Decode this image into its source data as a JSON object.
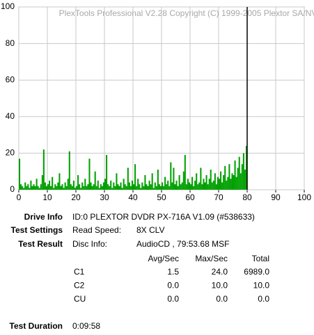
{
  "chart_data": {
    "type": "bar",
    "watermark": "PlexTools Professional V2.28 Copyright (C) 1999-2005 Plextor SA/NV",
    "x": [
      0,
      0.5,
      1,
      1.5,
      2,
      2.5,
      3,
      3.5,
      4,
      4.5,
      5,
      5.5,
      6,
      6.5,
      7,
      7.5,
      8,
      8.5,
      9,
      9.5,
      10,
      10.5,
      11,
      11.5,
      12,
      12.5,
      13,
      13.5,
      14,
      14.5,
      15,
      15.5,
      16,
      16.5,
      17,
      17.5,
      18,
      18.5,
      19,
      19.5,
      20,
      20.5,
      21,
      21.5,
      22,
      22.5,
      23,
      23.5,
      24,
      24.5,
      25,
      25.5,
      26,
      26.5,
      27,
      27.5,
      28,
      28.5,
      29,
      29.5,
      30,
      30.5,
      31,
      31.5,
      32,
      32.5,
      33,
      33.5,
      34,
      34.5,
      35,
      35.5,
      36,
      36.5,
      37,
      37.5,
      38,
      38.5,
      39,
      39.5,
      40,
      40.5,
      41,
      41.5,
      42,
      42.5,
      43,
      43.5,
      44,
      44.5,
      45,
      45.5,
      46,
      46.5,
      47,
      47.5,
      48,
      48.5,
      49,
      49.5,
      50,
      50.5,
      51,
      51.5,
      52,
      52.5,
      53,
      53.5,
      54,
      54.5,
      55,
      55.5,
      56,
      56.5,
      57,
      57.5,
      58,
      58.5,
      59,
      59.5,
      60,
      60.5,
      61,
      61.5,
      62,
      62.5,
      63,
      63.5,
      64,
      64.5,
      65,
      65.5,
      66,
      66.5,
      67,
      67.5,
      68,
      68.5,
      69,
      69.5,
      70,
      70.5,
      71,
      71.5,
      72,
      72.5,
      73,
      73.5,
      74,
      74.5,
      75,
      75.5,
      76,
      76.5,
      77,
      77.5,
      78,
      78.5,
      79,
      79.5
    ],
    "values": [
      17,
      3,
      2,
      1,
      4,
      2,
      3,
      1,
      5,
      2,
      3,
      2,
      6,
      2,
      1,
      3,
      8,
      22,
      4,
      2,
      3,
      5,
      2,
      7,
      1,
      3,
      2,
      4,
      9,
      2,
      3,
      1,
      4,
      2,
      6,
      21,
      3,
      2,
      5,
      1,
      2,
      8,
      3,
      1,
      4,
      2,
      6,
      2,
      3,
      17,
      4,
      2,
      3,
      10,
      2,
      5,
      1,
      3,
      2,
      4,
      6,
      19,
      3,
      2,
      5,
      1,
      4,
      2,
      9,
      3,
      2,
      4,
      1,
      6,
      3,
      2,
      12,
      4,
      2,
      5,
      3,
      14,
      2,
      6,
      3,
      1,
      4,
      2,
      8,
      3,
      2,
      5,
      3,
      9,
      1,
      4,
      2,
      11,
      3,
      2,
      4,
      2,
      7,
      3,
      5,
      2,
      15,
      4,
      12,
      3,
      5,
      2,
      8,
      3,
      4,
      10,
      19,
      3,
      6,
      4,
      3,
      7,
      2,
      5,
      9,
      3,
      4,
      12,
      3,
      6,
      4,
      8,
      3,
      6,
      11,
      4,
      5,
      9,
      3,
      7,
      6,
      10,
      4,
      8,
      13,
      5,
      7,
      14,
      6,
      9,
      8,
      16,
      7,
      12,
      18,
      9,
      14,
      20,
      11,
      24
    ],
    "color": "#00a000",
    "end_x": 80,
    "xlim": [
      0,
      100
    ],
    "xticks": [
      0,
      10,
      20,
      30,
      40,
      50,
      60,
      70,
      80,
      90,
      100
    ],
    "ylim": [
      0,
      100
    ],
    "yticks": [
      0,
      20,
      40,
      60,
      80,
      100
    ],
    "grid": true
  },
  "info": {
    "drive_label": "Drive Info",
    "drive_value": "ID:0 PLEXTOR DVDR PX-716A V1.09 (#538633)",
    "settings_label": "Test Settings",
    "settings_key": "Read Speed:",
    "settings_value": "8X CLV",
    "result_label": "Test Result",
    "result_key": "Disc Info:",
    "result_value": "AudioCD , 79:53.68 MSF",
    "columns": [
      "Avg/Sec",
      "Max/Sec",
      "Total"
    ],
    "rows": [
      [
        "C1",
        "1.5",
        "24.0",
        "6989.0"
      ],
      [
        "C2",
        "0.0",
        "10.0",
        "10.0"
      ],
      [
        "CU",
        "0.0",
        "0.0",
        "0.0"
      ]
    ],
    "duration_label": "Test Duration",
    "duration_value": "0:09:58"
  }
}
